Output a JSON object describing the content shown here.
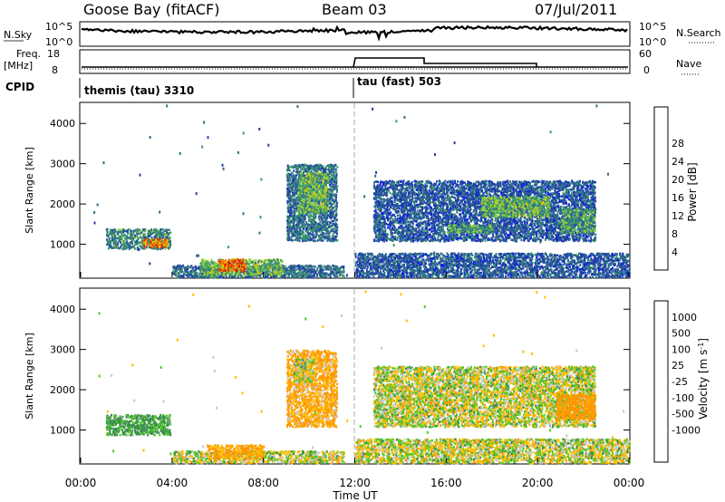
{
  "header": {
    "station": "Goose Bay (fitACF)",
    "beam": "Beam 03",
    "date": "07/Jul/2011"
  },
  "top_panels": {
    "nsky_label": "N.Sky",
    "nsearch_label": "N.Search",
    "nsky_ticks": [
      "10^5",
      "10^0"
    ],
    "nsearch_ticks": [
      "10^5",
      "10^0"
    ],
    "freq_label": "Freq.",
    "freq_unit": "[MHz]",
    "freq_ticks": [
      "18",
      "8"
    ],
    "nave_label": "Nave",
    "nave_ticks": [
      "60",
      "0"
    ],
    "cpid_label": "CPID",
    "cpid_segments": [
      {
        "text": "themis (tau) 3310",
        "start_hour": 0
      },
      {
        "text": "tau (fast) 503",
        "start_hour": 12
      }
    ]
  },
  "colors": {
    "power_scale": [
      "#0a1ee6",
      "#1f3fa8",
      "#2f6a8c",
      "#3c9a6a",
      "#8fcf3a",
      "#f0c800",
      "#f08000",
      "#e03000",
      "#e00000"
    ],
    "velocity_scale": [
      "#ff0000",
      "#ff4000",
      "#ff9800",
      "#ffc000",
      "#c8c8c8",
      "#c8c8c8",
      "#50c828",
      "#3c8c50",
      "#1e50b4",
      "#0000ff"
    ]
  },
  "chart_data": [
    {
      "type": "heatmap",
      "name": "power",
      "xlabel": "",
      "ylabel": "Slant Range [km]",
      "x_unit": "hour UT",
      "xlim": [
        0,
        24
      ],
      "ylim": [
        180,
        4500
      ],
      "yticks": [
        1000,
        2000,
        3000,
        4000
      ],
      "colorbar_label": "Power [dB]",
      "colorbar_ticks": [
        "4",
        "8",
        "12",
        "16",
        "20",
        "24",
        "28"
      ],
      "scatter_regions": [
        {
          "t0": 1.1,
          "t1": 3.9,
          "r0": 900,
          "r1": 1400,
          "power": 10
        },
        {
          "t0": 2.7,
          "t1": 3.8,
          "r0": 950,
          "r1": 1150,
          "power": 24
        },
        {
          "t0": 4.0,
          "t1": 11.5,
          "r0": 200,
          "r1": 500,
          "power": 8
        },
        {
          "t0": 5.2,
          "t1": 8.8,
          "r0": 250,
          "r1": 650,
          "power": 14
        },
        {
          "t0": 6.0,
          "t1": 7.2,
          "r0": 350,
          "r1": 650,
          "power": 26
        },
        {
          "t0": 9.0,
          "t1": 11.2,
          "r0": 1100,
          "r1": 3000,
          "power": 8
        },
        {
          "t0": 9.5,
          "t1": 10.8,
          "r0": 1800,
          "r1": 2800,
          "power": 14
        },
        {
          "t0": 12.8,
          "t1": 22.5,
          "r0": 1100,
          "r1": 2600,
          "power": 6
        },
        {
          "t0": 16.0,
          "t1": 18.0,
          "r0": 1300,
          "r1": 1500,
          "power": 12
        },
        {
          "t0": 17.5,
          "t1": 20.5,
          "r0": 1700,
          "r1": 2200,
          "power": 14
        },
        {
          "t0": 21.0,
          "t1": 22.5,
          "r0": 1300,
          "r1": 1900,
          "power": 12
        },
        {
          "t0": 12.0,
          "t1": 24.0,
          "r0": 200,
          "r1": 800,
          "power": 6
        }
      ]
    },
    {
      "type": "heatmap",
      "name": "velocity",
      "xlabel": "Time UT",
      "ylabel": "Slant Range [km]",
      "x_unit": "hour UT",
      "xlim": [
        0,
        24
      ],
      "ylim": [
        180,
        4500
      ],
      "yticks": [
        1000,
        2000,
        3000,
        4000
      ],
      "xticks": [
        "00:00",
        "04:00",
        "08:00",
        "12:00",
        "16:00",
        "20:00",
        "00:00"
      ],
      "colorbar_label": "Velocity [m s^-1]",
      "colorbar_ticks": [
        "1000",
        "500",
        "100",
        "25",
        "-25",
        "-100",
        "-500",
        "-1000"
      ],
      "scatter_regions": [
        {
          "t0": 1.1,
          "t1": 3.9,
          "r0": 900,
          "r1": 1400,
          "velocity": 150
        },
        {
          "t0": 4.0,
          "t1": 11.5,
          "r0": 200,
          "r1": 500,
          "velocity": 0
        },
        {
          "t0": 5.5,
          "t1": 8.0,
          "r0": 300,
          "r1": 650,
          "velocity": -150
        },
        {
          "t0": 9.0,
          "t1": 11.2,
          "r0": 1100,
          "r1": 3000,
          "velocity": -120
        },
        {
          "t0": 9.3,
          "t1": 10.2,
          "r0": 2200,
          "r1": 2800,
          "velocity": 0
        },
        {
          "t0": 12.8,
          "t1": 22.5,
          "r0": 1100,
          "r1": 2600,
          "velocity": 0
        },
        {
          "t0": 20.8,
          "t1": 22.5,
          "r0": 1300,
          "r1": 1900,
          "velocity": -300
        },
        {
          "t0": 12.0,
          "t1": 24.0,
          "r0": 200,
          "r1": 800,
          "velocity": 0
        }
      ]
    }
  ]
}
